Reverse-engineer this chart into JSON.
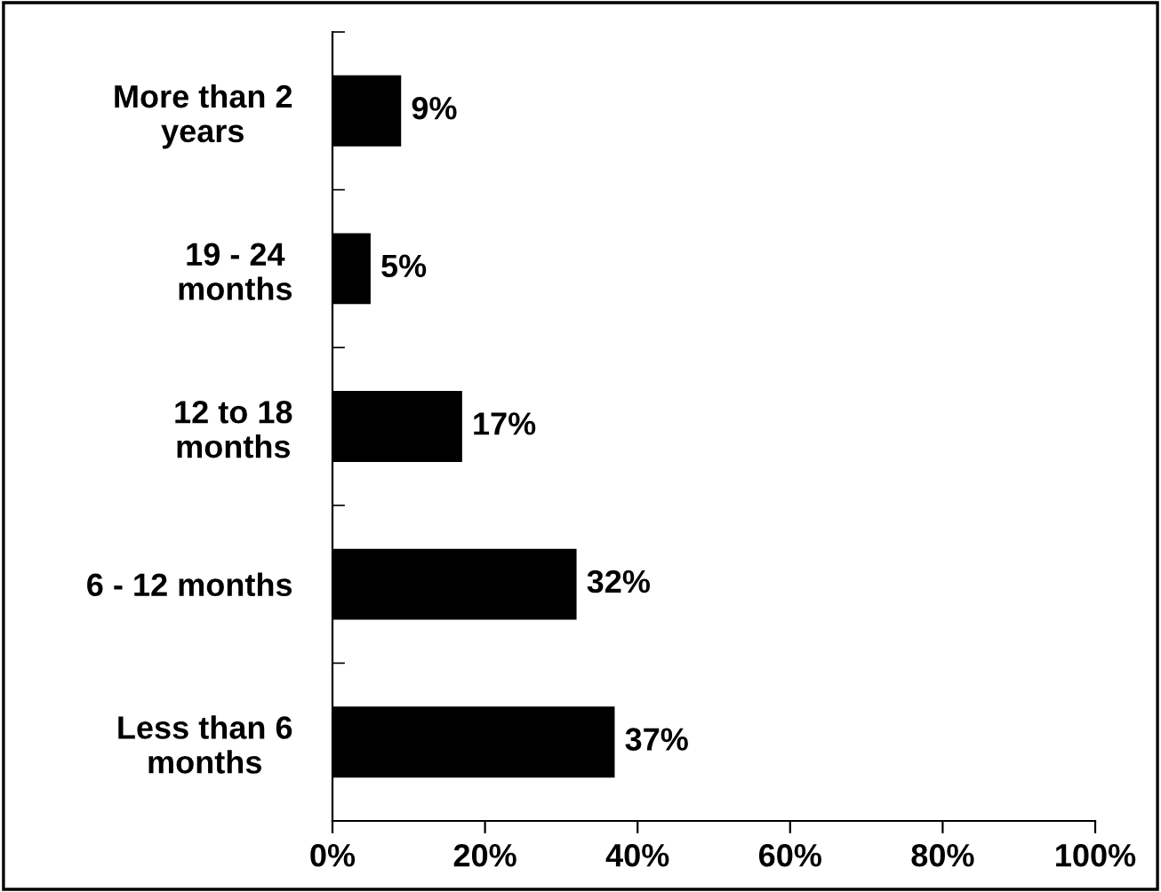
{
  "chart_data": {
    "type": "bar",
    "orientation": "horizontal",
    "categories": [
      "More than 2\nyears",
      "19 - 24\nmonths",
      "12 to 18\nmonths",
      "6 - 12 months",
      "Less than 6\nmonths"
    ],
    "values": [
      9,
      5,
      17,
      32,
      37
    ],
    "color": "#000000",
    "value_labels": [
      "9%",
      "5%",
      "17%",
      "32%",
      "37%"
    ],
    "xlim": [
      0,
      100
    ],
    "xticks": [
      {
        "value": 0,
        "label": "0%"
      },
      {
        "value": 20,
        "label": "20%"
      },
      {
        "value": 40,
        "label": "40%"
      },
      {
        "value": 60,
        "label": "60%"
      },
      {
        "value": 80,
        "label": "80%"
      },
      {
        "value": 100,
        "label": "100%"
      }
    ],
    "grid": false,
    "legend": false
  }
}
